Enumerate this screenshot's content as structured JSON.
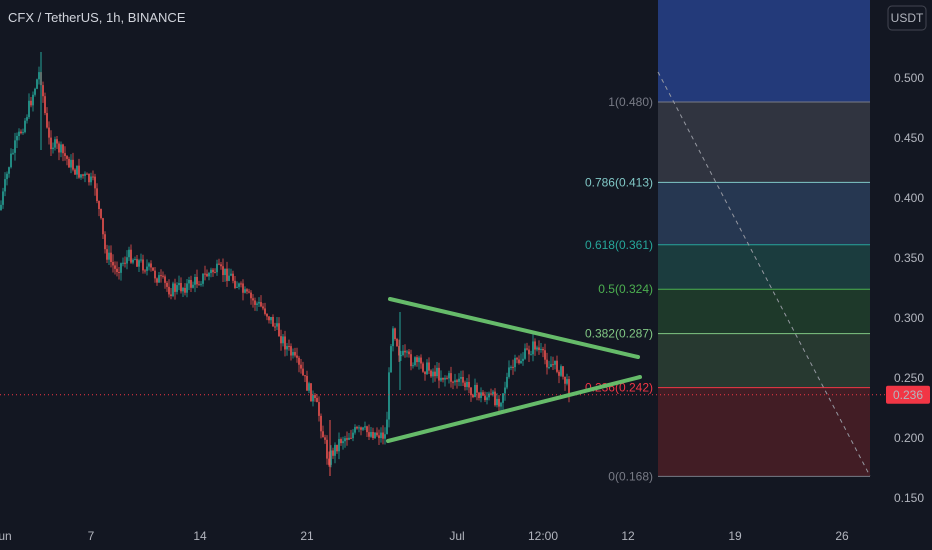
{
  "header": {
    "ticker": "CFX / TetherUS, 1h, BINANCE"
  },
  "price_axis": {
    "currency": "USDT",
    "ticks": [
      "0.500",
      "0.450",
      "0.400",
      "0.350",
      "0.300",
      "0.250",
      "0.200",
      "0.150"
    ],
    "current_price": "0.236"
  },
  "time_axis": {
    "ticks": [
      "Jun",
      "7",
      "14",
      "21",
      "Jul",
      "12:00",
      "12",
      "19",
      "26"
    ]
  },
  "fibonacci": [
    {
      "label": "1(0.480)",
      "price": 0.48,
      "color": "#787b86",
      "fill": "#363a45"
    },
    {
      "label": "0.786(0.413)",
      "price": 0.413,
      "color": "#81c8c7",
      "fill": "#2a3d59"
    },
    {
      "label": "0.618(0.361)",
      "price": 0.361,
      "color": "#26a69a",
      "fill": "#1d4343"
    },
    {
      "label": "0.5(0.324)",
      "price": 0.324,
      "color": "#4caf50",
      "fill": "#21402b"
    },
    {
      "label": "0.382(0.287)",
      "price": 0.287,
      "color": "#81c784",
      "fill": "#2b3f33"
    },
    {
      "label": "0.236(0.242)",
      "price": 0.242,
      "color": "#f23645",
      "fill": "#4b1e26"
    },
    {
      "label": "0(0.168)",
      "price": 0.168,
      "color": "#787b86",
      "fill": null
    }
  ],
  "colors": {
    "background": "#131722",
    "candle_up": "#26a69a",
    "candle_down": "#ef5350",
    "triangle": "#66bb6a",
    "price_badge": "#f23645",
    "fib_top_zone": "#233a7a"
  }
}
